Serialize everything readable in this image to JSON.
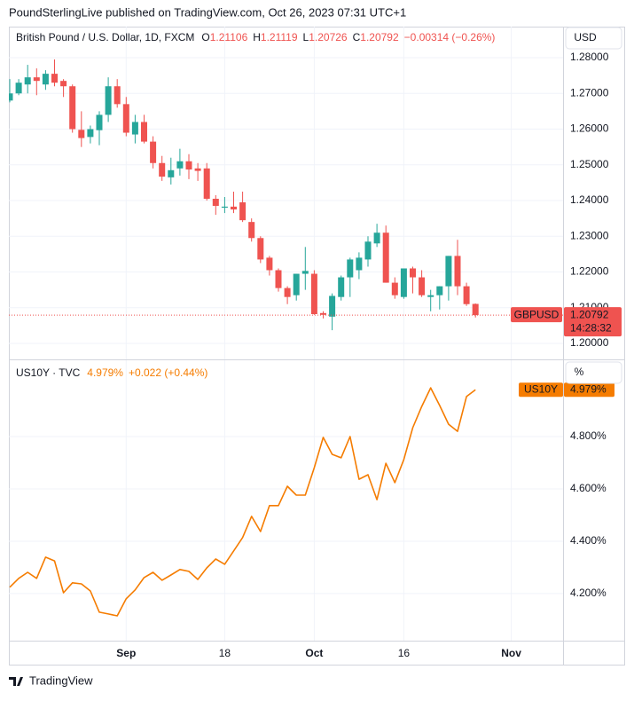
{
  "header": "PoundSterlingLive published on TradingView.com, Oct 26, 2023 07:31 UTC+1",
  "footer": "TradingView",
  "chart_data": [
    {
      "type": "candlestick",
      "title": "British Pound / U.S. Dollar, 1D, FXCM",
      "ohlc_labels": [
        "O",
        "H",
        "L",
        "C"
      ],
      "change": "−0.00314 (−0.26%)",
      "symbol": "GBPUSD",
      "countdown": "14:28:32",
      "currency": "USD",
      "up_color": "#26a69a",
      "down_color": "#ef5350",
      "grid": true,
      "categories": [
        null,
        null,
        null,
        null,
        null,
        null,
        null,
        null,
        null,
        null,
        null,
        null,
        null,
        "Sep",
        null,
        null,
        null,
        null,
        null,
        null,
        null,
        null,
        null,
        null,
        "18",
        null,
        null,
        null,
        null,
        null,
        null,
        null,
        null,
        null,
        "Oct",
        null,
        null,
        null,
        null,
        null,
        null,
        null,
        null,
        null,
        "16",
        null,
        null,
        null,
        null,
        null,
        null,
        null,
        null,
        null,
        null,
        null,
        "Nov",
        null,
        null,
        null,
        null,
        null
      ],
      "open": [
        1.268,
        1.27,
        1.2725,
        1.2745,
        1.2725,
        1.2755,
        1.2735,
        1.272,
        1.2598,
        1.2578,
        1.2597,
        1.264,
        1.272,
        1.267,
        1.2585,
        1.262,
        1.2565,
        1.2505,
        1.2465,
        1.249,
        1.251,
        1.249,
        1.249,
        1.2405,
        1.238,
        1.2383,
        1.2395,
        1.234,
        1.2295,
        1.224,
        1.2205,
        1.2155,
        1.2135,
        1.2195,
        1.2195,
        1.2085,
        1.2075,
        1.213,
        1.2185,
        1.2205,
        1.2235,
        1.228,
        1.231,
        1.217,
        1.213,
        1.221,
        1.2185,
        1.213,
        1.2135,
        1.216,
        1.2245,
        1.216,
        1.21106,
        null,
        null,
        null,
        null,
        null,
        null,
        null,
        null,
        null
      ],
      "high": [
        1.274,
        1.274,
        1.278,
        1.277,
        1.2765,
        1.2795,
        1.274,
        1.2725,
        1.265,
        1.261,
        1.265,
        1.2745,
        1.274,
        1.269,
        1.264,
        1.264,
        1.258,
        1.2525,
        1.252,
        1.2545,
        1.253,
        1.2505,
        1.2505,
        1.2415,
        1.241,
        1.2425,
        1.2425,
        1.235,
        1.23,
        1.2245,
        1.221,
        1.216,
        1.2195,
        1.227,
        1.2205,
        1.209,
        1.214,
        1.219,
        1.224,
        1.2255,
        1.23,
        1.2335,
        1.233,
        1.2185,
        1.221,
        1.2215,
        1.2205,
        1.215,
        1.216,
        1.2245,
        1.229,
        1.217,
        1.21119,
        null,
        null,
        null,
        null,
        null,
        null,
        null,
        null,
        null
      ],
      "low": [
        1.2675,
        1.2695,
        1.27,
        1.2695,
        1.271,
        1.272,
        1.269,
        1.259,
        1.255,
        1.256,
        1.2555,
        1.262,
        1.266,
        1.258,
        1.256,
        1.256,
        1.249,
        1.2455,
        1.2445,
        1.247,
        1.246,
        1.2455,
        1.24,
        1.236,
        1.2365,
        1.2365,
        1.234,
        1.2285,
        1.2225,
        1.219,
        1.2145,
        1.211,
        1.212,
        1.215,
        1.208,
        1.207,
        1.2037,
        1.212,
        1.213,
        1.218,
        1.2215,
        1.227,
        1.217,
        1.2125,
        1.2125,
        1.214,
        1.213,
        1.209,
        1.2095,
        1.212,
        1.2135,
        1.2105,
        1.20726,
        null,
        null,
        null,
        null,
        null,
        null,
        null,
        null,
        null
      ],
      "close": [
        1.27,
        1.273,
        1.2745,
        1.2735,
        1.2755,
        1.273,
        1.272,
        1.26,
        1.2575,
        1.26,
        1.264,
        1.272,
        1.267,
        1.259,
        1.262,
        1.2565,
        1.2505,
        1.2467,
        1.2485,
        1.251,
        1.2487,
        1.2483,
        1.2405,
        1.2385,
        1.2383,
        1.2375,
        1.2345,
        1.2295,
        1.2235,
        1.2205,
        1.2155,
        1.213,
        1.2195,
        1.2203,
        1.2082,
        1.208,
        1.2133,
        1.2185,
        1.2235,
        1.224,
        1.2285,
        1.231,
        1.217,
        1.2135,
        1.221,
        1.2185,
        1.2135,
        1.2135,
        1.216,
        1.2245,
        1.216,
        1.211,
        1.20792,
        null,
        null,
        null,
        null,
        null,
        null,
        null,
        null,
        null
      ],
      "ylim": [
        1.19553,
        1.2887
      ],
      "yticks": [
        {
          "value": 1.2,
          "label": "1.20000"
        },
        {
          "value": 1.21,
          "label": "1.21000"
        },
        {
          "value": 1.22,
          "label": "1.22000"
        },
        {
          "value": 1.23,
          "label": "1.23000"
        },
        {
          "value": 1.24,
          "label": "1.24000"
        },
        {
          "value": 1.25,
          "label": "1.25000"
        },
        {
          "value": 1.26,
          "label": "1.26000"
        },
        {
          "value": 1.27,
          "label": "1.27000"
        },
        {
          "value": 1.28,
          "label": "1.28000"
        }
      ]
    },
    {
      "type": "line",
      "title": "US10Y · TVC",
      "last_label": "4.979%",
      "change": "+0.022 (+0.44%)",
      "symbol": "US10Y",
      "unit_button": "%",
      "color": "#f57c00",
      "grid": true,
      "values": [
        4.224,
        4.258,
        4.281,
        4.258,
        4.339,
        4.325,
        4.203,
        4.241,
        4.237,
        4.21,
        4.129,
        4.122,
        4.115,
        4.18,
        4.214,
        4.261,
        4.281,
        4.251,
        4.271,
        4.292,
        4.285,
        4.254,
        4.298,
        4.332,
        4.312,
        4.363,
        4.414,
        4.495,
        4.437,
        4.536,
        4.536,
        4.61,
        4.576,
        4.576,
        4.681,
        4.797,
        4.732,
        4.719,
        4.8,
        4.637,
        4.654,
        4.559,
        4.698,
        4.624,
        4.712,
        4.834,
        4.915,
        4.986,
        4.919,
        4.847,
        4.82,
        4.953,
        4.979,
        null,
        null,
        null,
        null,
        null,
        null,
        null,
        null,
        null
      ],
      "ylim": [
        4.02,
        5.095
      ],
      "yticks": [
        {
          "value": 4.2,
          "label": "4.200%"
        },
        {
          "value": 4.4,
          "label": "4.400%"
        },
        {
          "value": 4.6,
          "label": "4.600%"
        },
        {
          "value": 4.8,
          "label": "4.800%"
        }
      ]
    }
  ]
}
